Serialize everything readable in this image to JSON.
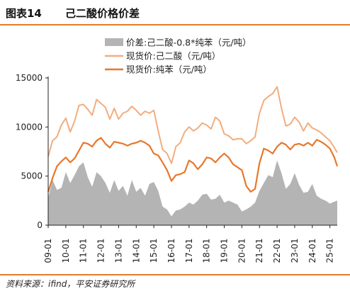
{
  "figure": {
    "number": "图表14",
    "title": "己二酸价格价差"
  },
  "source": "资料来源：ifind，平安证券研究所",
  "colors": {
    "accent": "#e07d2c",
    "spread": "#b4b4b4",
    "adipic": "#f2ad7e",
    "benzene": "#e8772b"
  },
  "chart_data": {
    "type": "area",
    "legend_position": "top-center",
    "grid": false,
    "ylim": [
      0,
      15000
    ],
    "yticks": [
      0,
      5000,
      10000,
      15000
    ],
    "xtick_labels": [
      "09-01",
      "10-01",
      "11-01",
      "12-01",
      "13-01",
      "14-01",
      "15-01",
      "16-01",
      "17-01",
      "18-01",
      "19-01",
      "20-01",
      "21-01",
      "22-01",
      "23-01",
      "24-01",
      "25-01"
    ],
    "x_start": "2009-01",
    "x_end": "2025-06",
    "series": [
      {
        "name": "价差:己二酸-0.8*纯苯（元/吨）",
        "style": "area",
        "color": "#b4b4b4",
        "x": [
          "2009-01",
          "2009-04",
          "2009-07",
          "2009-10",
          "2010-01",
          "2010-04",
          "2010-07",
          "2010-10",
          "2011-01",
          "2011-04",
          "2011-07",
          "2011-10",
          "2012-01",
          "2012-04",
          "2012-07",
          "2012-10",
          "2013-01",
          "2013-04",
          "2013-07",
          "2013-10",
          "2014-01",
          "2014-04",
          "2014-07",
          "2014-10",
          "2015-01",
          "2015-04",
          "2015-07",
          "2015-10",
          "2016-01",
          "2016-04",
          "2016-07",
          "2016-10",
          "2017-01",
          "2017-04",
          "2017-07",
          "2017-10",
          "2018-01",
          "2018-04",
          "2018-07",
          "2018-10",
          "2019-01",
          "2019-04",
          "2019-07",
          "2019-10",
          "2020-01",
          "2020-04",
          "2020-07",
          "2020-10",
          "2021-01",
          "2021-04",
          "2021-07",
          "2021-10",
          "2022-01",
          "2022-04",
          "2022-07",
          "2022-10",
          "2023-01",
          "2023-04",
          "2023-07",
          "2023-10",
          "2024-01",
          "2024-04",
          "2024-07",
          "2024-10",
          "2025-01",
          "2025-04",
          "2025-06"
        ],
        "values": [
          2800,
          4600,
          3600,
          3800,
          5400,
          4300,
          5100,
          6000,
          6400,
          4900,
          3900,
          5400,
          5000,
          4300,
          3300,
          4600,
          3500,
          4000,
          3000,
          4600,
          3400,
          3800,
          3000,
          4200,
          4400,
          3500,
          1900,
          1600,
          900,
          1500,
          1600,
          1900,
          2300,
          2100,
          2500,
          3100,
          3200,
          2600,
          2700,
          3100,
          2300,
          2500,
          2300,
          2100,
          1400,
          1600,
          1900,
          2300,
          3500,
          4300,
          5100,
          4900,
          6600,
          5300,
          3700,
          4200,
          5300,
          4100,
          3300,
          3400,
          4200,
          3000,
          2700,
          2500,
          2200,
          2400,
          2500
        ]
      },
      {
        "name": "现货价:己二酸（元/吨）",
        "style": "line",
        "color": "#f2ad7e",
        "x": [
          "2009-01",
          "2009-04",
          "2009-07",
          "2009-10",
          "2010-01",
          "2010-04",
          "2010-07",
          "2010-10",
          "2011-01",
          "2011-04",
          "2011-07",
          "2011-10",
          "2012-01",
          "2012-04",
          "2012-07",
          "2012-10",
          "2013-01",
          "2013-04",
          "2013-07",
          "2013-10",
          "2014-01",
          "2014-04",
          "2014-07",
          "2014-10",
          "2015-01",
          "2015-04",
          "2015-07",
          "2015-10",
          "2016-01",
          "2016-04",
          "2016-07",
          "2016-10",
          "2017-01",
          "2017-04",
          "2017-07",
          "2017-10",
          "2018-01",
          "2018-04",
          "2018-07",
          "2018-10",
          "2019-01",
          "2019-04",
          "2019-07",
          "2019-10",
          "2020-01",
          "2020-04",
          "2020-07",
          "2020-10",
          "2021-01",
          "2021-04",
          "2021-07",
          "2021-10",
          "2022-01",
          "2022-04",
          "2022-07",
          "2022-10",
          "2023-01",
          "2023-04",
          "2023-07",
          "2023-10",
          "2024-01",
          "2024-04",
          "2024-07",
          "2024-10",
          "2025-01",
          "2025-04",
          "2025-06"
        ],
        "values": [
          7000,
          8600,
          9000,
          10200,
          10900,
          9500,
          10600,
          12200,
          12300,
          11800,
          11200,
          12800,
          12400,
          12000,
          10800,
          11900,
          10800,
          11400,
          11600,
          12100,
          11700,
          11200,
          11600,
          11400,
          11700,
          9600,
          7700,
          7300,
          6300,
          8000,
          8400,
          9500,
          10000,
          9600,
          9900,
          10400,
          10200,
          9800,
          11000,
          10600,
          9300,
          9100,
          8700,
          8800,
          8800,
          8300,
          8600,
          9000,
          11400,
          12700,
          13100,
          13400,
          14100,
          11900,
          10100,
          10300,
          11000,
          10500,
          9600,
          10400,
          9900,
          9700,
          9400,
          9000,
          8600,
          7900,
          7400
        ]
      },
      {
        "name": "现货价:纯苯（元/吨）",
        "style": "line",
        "color": "#e8772b",
        "x": [
          "2009-01",
          "2009-04",
          "2009-07",
          "2009-10",
          "2010-01",
          "2010-04",
          "2010-07",
          "2010-10",
          "2011-01",
          "2011-04",
          "2011-07",
          "2011-10",
          "2012-01",
          "2012-04",
          "2012-07",
          "2012-10",
          "2013-01",
          "2013-04",
          "2013-07",
          "2013-10",
          "2014-01",
          "2014-04",
          "2014-07",
          "2014-10",
          "2015-01",
          "2015-04",
          "2015-07",
          "2015-10",
          "2016-01",
          "2016-04",
          "2016-07",
          "2016-10",
          "2017-01",
          "2017-04",
          "2017-07",
          "2017-10",
          "2018-01",
          "2018-04",
          "2018-07",
          "2018-10",
          "2019-01",
          "2019-04",
          "2019-07",
          "2019-10",
          "2020-01",
          "2020-04",
          "2020-07",
          "2020-10",
          "2021-01",
          "2021-04",
          "2021-07",
          "2021-10",
          "2022-01",
          "2022-04",
          "2022-07",
          "2022-10",
          "2023-01",
          "2023-04",
          "2023-07",
          "2023-10",
          "2024-01",
          "2024-04",
          "2024-07",
          "2024-10",
          "2025-01",
          "2025-04",
          "2025-06"
        ],
        "values": [
          3400,
          4800,
          6000,
          6500,
          6900,
          6400,
          6800,
          7600,
          8400,
          8300,
          8000,
          8600,
          8900,
          8300,
          7900,
          8500,
          8400,
          8300,
          8100,
          8300,
          8400,
          8600,
          8400,
          8100,
          7300,
          7100,
          6400,
          5600,
          4500,
          5100,
          5200,
          5400,
          6600,
          6300,
          5700,
          6200,
          6900,
          6800,
          6400,
          6900,
          7300,
          6900,
          6200,
          5900,
          5600,
          4000,
          3400,
          3700,
          6300,
          7800,
          7600,
          7300,
          8000,
          8400,
          8200,
          7700,
          8200,
          8300,
          8100,
          8400,
          8100,
          8700,
          8500,
          8200,
          7800,
          6900,
          6000
        ]
      }
    ]
  }
}
